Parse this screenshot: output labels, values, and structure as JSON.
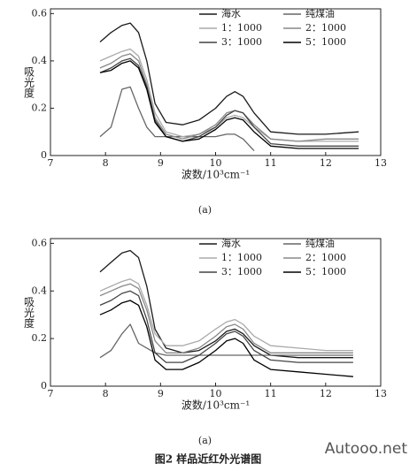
{
  "chart_data": [
    {
      "type": "line",
      "subcaption": "(a)",
      "xlabel": "波数/10³cm⁻¹",
      "ylabel": "吸光度",
      "x": [
        7.9,
        8.1,
        8.3,
        8.45,
        8.6,
        8.75,
        8.9,
        9.1,
        9.4,
        9.7,
        10.0,
        10.2,
        10.35,
        10.5,
        10.7,
        11.0,
        11.5,
        12.0,
        12.6
      ],
      "series": [
        {
          "name": "海水",
          "color": "#1a1a1a",
          "values": [
            0.48,
            0.52,
            0.55,
            0.56,
            0.52,
            0.4,
            0.22,
            0.14,
            0.13,
            0.15,
            0.2,
            0.25,
            0.27,
            0.25,
            0.18,
            0.1,
            0.09,
            0.09,
            0.1
          ]
        },
        {
          "name": "纯煤油",
          "color": "#666666",
          "values": [
            0.08,
            0.12,
            0.28,
            0.29,
            0.2,
            0.12,
            0.08,
            0.08,
            0.08,
            0.08,
            0.08,
            0.09,
            0.09,
            0.07,
            0.02,
            null,
            null,
            null,
            null
          ]
        },
        {
          "name": "1：1000",
          "color": "#aaaaaa",
          "values": [
            0.4,
            0.42,
            0.44,
            0.45,
            0.42,
            0.32,
            0.18,
            0.1,
            0.08,
            0.09,
            0.12,
            0.16,
            0.17,
            0.16,
            0.12,
            0.07,
            0.06,
            0.06,
            0.06
          ]
        },
        {
          "name": "2：1000",
          "color": "#888888",
          "values": [
            0.37,
            0.39,
            0.42,
            0.43,
            0.4,
            0.3,
            0.16,
            0.09,
            0.07,
            0.09,
            0.13,
            0.18,
            0.19,
            0.18,
            0.13,
            0.07,
            0.06,
            0.07,
            0.07
          ]
        },
        {
          "name": "3：1000",
          "color": "#444444",
          "values": [
            0.35,
            0.37,
            0.4,
            0.41,
            0.38,
            0.29,
            0.15,
            0.08,
            0.06,
            0.08,
            0.12,
            0.17,
            0.19,
            0.18,
            0.12,
            0.05,
            0.04,
            0.04,
            0.04
          ]
        },
        {
          "name": "5：1000",
          "color": "#000000",
          "values": [
            0.35,
            0.36,
            0.39,
            0.4,
            0.37,
            0.28,
            0.14,
            0.08,
            0.06,
            0.07,
            0.11,
            0.15,
            0.16,
            0.15,
            0.1,
            0.04,
            0.03,
            0.03,
            0.03
          ]
        }
      ],
      "xlim": [
        7,
        13
      ],
      "xticks": [
        7,
        8,
        9,
        10,
        11,
        12,
        13
      ],
      "ylim": [
        0,
        0.62
      ],
      "yticks": [
        0,
        0.2,
        0.4,
        0.6
      ],
      "legend": "upper right"
    },
    {
      "type": "line",
      "subcaption": "(a)",
      "xlabel": "波数/10³cm⁻¹",
      "ylabel": "吸光度",
      "x": [
        7.9,
        8.1,
        8.3,
        8.45,
        8.6,
        8.75,
        8.9,
        9.1,
        9.4,
        9.7,
        10.0,
        10.2,
        10.35,
        10.5,
        10.7,
        11.0,
        11.5,
        12.0,
        12.5
      ],
      "series": [
        {
          "name": "海水",
          "color": "#1a1a1a",
          "values": [
            0.48,
            0.52,
            0.56,
            0.57,
            0.54,
            0.42,
            0.24,
            0.16,
            0.14,
            0.15,
            0.19,
            0.23,
            0.24,
            0.22,
            0.17,
            0.13,
            0.12,
            0.12,
            0.12
          ]
        },
        {
          "name": "纯煤油",
          "color": "#666666",
          "values": [
            0.12,
            0.15,
            0.22,
            0.26,
            0.18,
            0.16,
            0.14,
            0.13,
            0.13,
            0.13,
            0.13,
            0.13,
            0.13,
            0.13,
            0.13,
            0.13,
            0.13,
            0.13,
            0.13
          ]
        },
        {
          "name": "1：1000",
          "color": "#aaaaaa",
          "values": [
            0.4,
            0.42,
            0.44,
            0.45,
            0.43,
            0.34,
            0.22,
            0.17,
            0.17,
            0.19,
            0.24,
            0.27,
            0.28,
            0.26,
            0.21,
            0.17,
            0.16,
            0.15,
            0.15
          ]
        },
        {
          "name": "2：1000",
          "color": "#888888",
          "values": [
            0.38,
            0.4,
            0.42,
            0.43,
            0.41,
            0.32,
            0.19,
            0.14,
            0.14,
            0.16,
            0.21,
            0.25,
            0.26,
            0.24,
            0.18,
            0.14,
            0.14,
            0.14,
            0.14
          ]
        },
        {
          "name": "3：1000",
          "color": "#444444",
          "values": [
            0.34,
            0.36,
            0.39,
            0.4,
            0.38,
            0.28,
            0.14,
            0.1,
            0.1,
            0.13,
            0.18,
            0.22,
            0.23,
            0.21,
            0.15,
            0.11,
            0.1,
            0.1,
            0.1
          ]
        },
        {
          "name": "5：1000",
          "color": "#000000",
          "values": [
            0.3,
            0.32,
            0.35,
            0.36,
            0.34,
            0.25,
            0.11,
            0.07,
            0.07,
            0.1,
            0.15,
            0.19,
            0.2,
            0.18,
            0.11,
            0.07,
            0.06,
            0.05,
            0.04
          ]
        }
      ],
      "xlim": [
        7,
        13
      ],
      "xticks": [
        7,
        8,
        9,
        10,
        11,
        12,
        13
      ],
      "ylim": [
        0,
        0.62
      ],
      "yticks": [
        0,
        0.2,
        0.4,
        0.6
      ],
      "legend": "upper right"
    }
  ],
  "caption": "图2  样品近红外光谱图",
  "watermark": "Autooo.net"
}
